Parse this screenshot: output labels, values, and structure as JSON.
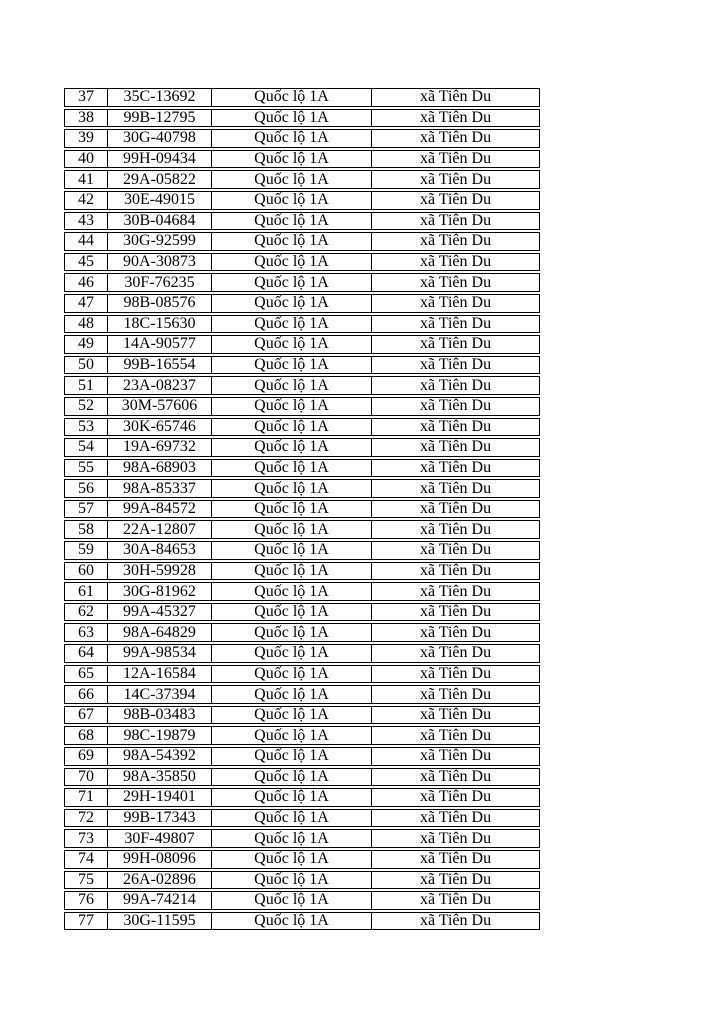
{
  "page": {
    "background_color": "#ffffff",
    "text_color": "#000000",
    "border_color": "#000000"
  },
  "table": {
    "description": "numbered list of vehicle license plates on road at commune",
    "road_label": "Quốc lộ 1A",
    "commune_label": "xã Tiên Du",
    "rows": [
      {
        "no": "37",
        "plate": "35C-13692",
        "road": "Quốc lộ 1A",
        "commune": "xã Tiên Du"
      },
      {
        "no": "38",
        "plate": "99B-12795",
        "road": "Quốc lộ 1A",
        "commune": "xã Tiên Du"
      },
      {
        "no": "39",
        "plate": "30G-40798",
        "road": "Quốc lộ 1A",
        "commune": "xã Tiên Du"
      },
      {
        "no": "40",
        "plate": "99H-09434",
        "road": "Quốc lộ 1A",
        "commune": "xã Tiên Du"
      },
      {
        "no": "41",
        "plate": "29A-05822",
        "road": "Quốc lộ 1A",
        "commune": "xã Tiên Du"
      },
      {
        "no": "42",
        "plate": "30E-49015",
        "road": "Quốc lộ 1A",
        "commune": "xã Tiên Du"
      },
      {
        "no": "43",
        "plate": "30B-04684",
        "road": "Quốc lộ 1A",
        "commune": "xã Tiên Du"
      },
      {
        "no": "44",
        "plate": "30G-92599",
        "road": "Quốc lộ 1A",
        "commune": "xã Tiên Du"
      },
      {
        "no": "45",
        "plate": "90A-30873",
        "road": "Quốc lộ 1A",
        "commune": "xã Tiên Du"
      },
      {
        "no": "46",
        "plate": "30F-76235",
        "road": "Quốc lộ 1A",
        "commune": "xã Tiên Du"
      },
      {
        "no": "47",
        "plate": "98B-08576",
        "road": "Quốc lộ 1A",
        "commune": "xã Tiên Du"
      },
      {
        "no": "48",
        "plate": "18C-15630",
        "road": "Quốc lộ 1A",
        "commune": "xã Tiên Du"
      },
      {
        "no": "49",
        "plate": "14A-90577",
        "road": "Quốc lộ 1A",
        "commune": "xã Tiên Du"
      },
      {
        "no": "50",
        "plate": "99B-16554",
        "road": "Quốc lộ 1A",
        "commune": "xã Tiên Du"
      },
      {
        "no": "51",
        "plate": "23A-08237",
        "road": "Quốc lộ 1A",
        "commune": "xã Tiên Du"
      },
      {
        "no": "52",
        "plate": "30M-57606",
        "road": "Quốc lộ 1A",
        "commune": "xã Tiên Du"
      },
      {
        "no": "53",
        "plate": "30K-65746",
        "road": "Quốc lộ 1A",
        "commune": "xã Tiên Du"
      },
      {
        "no": "54",
        "plate": "19A-69732",
        "road": "Quốc lộ 1A",
        "commune": "xã Tiên Du"
      },
      {
        "no": "55",
        "plate": "98A-68903",
        "road": "Quốc lộ 1A",
        "commune": "xã Tiên Du"
      },
      {
        "no": "56",
        "plate": "98A-85337",
        "road": "Quốc lộ 1A",
        "commune": "xã Tiên Du"
      },
      {
        "no": "57",
        "plate": "99A-84572",
        "road": "Quốc lộ 1A",
        "commune": "xã Tiên Du"
      },
      {
        "no": "58",
        "plate": "22A-12807",
        "road": "Quốc lộ 1A",
        "commune": "xã Tiên Du"
      },
      {
        "no": "59",
        "plate": "30A-84653",
        "road": "Quốc lộ 1A",
        "commune": "xã Tiên Du"
      },
      {
        "no": "60",
        "plate": "30H-59928",
        "road": "Quốc lộ 1A",
        "commune": "xã Tiên Du"
      },
      {
        "no": "61",
        "plate": "30G-81962",
        "road": "Quốc lộ 1A",
        "commune": "xã Tiên Du"
      },
      {
        "no": "62",
        "plate": "99A-45327",
        "road": "Quốc lộ 1A",
        "commune": "xã Tiên Du"
      },
      {
        "no": "63",
        "plate": "98A-64829",
        "road": "Quốc lộ 1A",
        "commune": "xã Tiên Du"
      },
      {
        "no": "64",
        "plate": "99A-98534",
        "road": "Quốc lộ 1A",
        "commune": "xã Tiên Du"
      },
      {
        "no": "65",
        "plate": "12A-16584",
        "road": "Quốc lộ 1A",
        "commune": "xã Tiên Du"
      },
      {
        "no": "66",
        "plate": "14C-37394",
        "road": "Quốc lộ 1A",
        "commune": "xã Tiên Du"
      },
      {
        "no": "67",
        "plate": "98B-03483",
        "road": "Quốc lộ 1A",
        "commune": "xã Tiên Du"
      },
      {
        "no": "68",
        "plate": "98C-19879",
        "road": "Quốc lộ 1A",
        "commune": "xã Tiên Du"
      },
      {
        "no": "69",
        "plate": "98A-54392",
        "road": "Quốc lộ 1A",
        "commune": "xã Tiên Du"
      },
      {
        "no": "70",
        "plate": "98A-35850",
        "road": "Quốc lộ 1A",
        "commune": "xã Tiên Du"
      },
      {
        "no": "71",
        "plate": "29H-19401",
        "road": "Quốc lộ 1A",
        "commune": "xã Tiên Du"
      },
      {
        "no": "72",
        "plate": "99B-17343",
        "road": "Quốc lộ 1A",
        "commune": "xã Tiên Du"
      },
      {
        "no": "73",
        "plate": "30F-49807",
        "road": "Quốc lộ 1A",
        "commune": "xã Tiên Du"
      },
      {
        "no": "74",
        "plate": "99H-08096",
        "road": "Quốc lộ 1A",
        "commune": "xã Tiên Du"
      },
      {
        "no": "75",
        "plate": "26A-02896",
        "road": "Quốc lộ 1A",
        "commune": "xã Tiên Du"
      },
      {
        "no": "76",
        "plate": "99A-74214",
        "road": "Quốc lộ 1A",
        "commune": "xã Tiên Du"
      },
      {
        "no": "77",
        "plate": "30G-11595",
        "road": "Quốc lộ 1A",
        "commune": "xã Tiên Du"
      }
    ]
  }
}
